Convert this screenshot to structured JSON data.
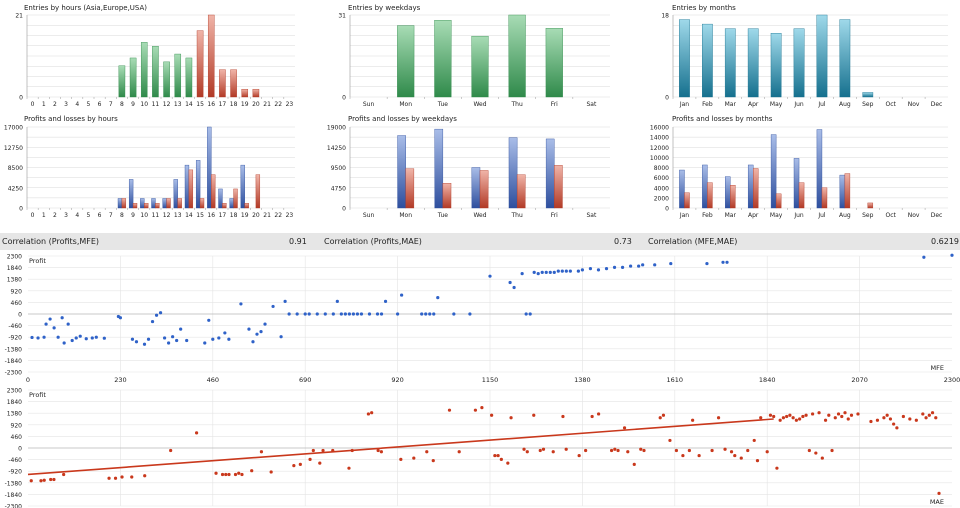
{
  "colors": {
    "green_top": "#a8dcb5",
    "green_bottom": "#2f8a4a",
    "red_top": "#f0b4a8",
    "red_bottom": "#b23a26",
    "teal_top": "#9fd9ea",
    "teal_bottom": "#15708e",
    "blue_top": "#a9bde8",
    "blue_bottom": "#2e4f9e",
    "grid": "#d9d9d9",
    "scatter_blue": "#2f62c8",
    "scatter_red": "#c9381c"
  },
  "correlations": [
    {
      "label": "Correlation (Profits,MFE)",
      "value": "0.91"
    },
    {
      "label": "Correlation (Profits,MAE)",
      "value": "0.73"
    },
    {
      "label": "Correlation (MFE,MAE)",
      "value": "0.6219"
    }
  ],
  "chart_data": [
    {
      "type": "bar",
      "title": "Entries by hours (Asia,Europe,USA)",
      "yticks": [
        "21",
        "0"
      ],
      "ylim": [
        0,
        21
      ],
      "categories": [
        "0",
        "1",
        "2",
        "3",
        "4",
        "5",
        "6",
        "7",
        "8",
        "9",
        "10",
        "11",
        "12",
        "13",
        "14",
        "15",
        "16",
        "17",
        "18",
        "19",
        "20",
        "21",
        "22",
        "23"
      ],
      "values": [
        0,
        0,
        0,
        0,
        0,
        0,
        0,
        0,
        8,
        10,
        14,
        13,
        9,
        11,
        10,
        17,
        21,
        7,
        7,
        2,
        2,
        0,
        0,
        0
      ],
      "bar_colors": [
        "g",
        "g",
        "g",
        "g",
        "g",
        "g",
        "g",
        "g",
        "g",
        "g",
        "g",
        "g",
        "g",
        "g",
        "g",
        "r",
        "r",
        "r",
        "r",
        "r",
        "r",
        "r",
        "r",
        "r"
      ]
    },
    {
      "type": "bar",
      "title": "Entries by weekdays",
      "yticks": [
        "31",
        "0"
      ],
      "ylim": [
        0,
        31
      ],
      "categories": [
        "Sun",
        "Mon",
        "Tue",
        "Wed",
        "Thu",
        "Fri",
        "Sat"
      ],
      "values": [
        0,
        27,
        29,
        23,
        31,
        26,
        0
      ],
      "bar_colors": [
        "g",
        "g",
        "g",
        "g",
        "g",
        "g",
        "g"
      ]
    },
    {
      "type": "bar",
      "title": "Entries by months",
      "yticks": [
        "18",
        "0"
      ],
      "ylim": [
        0,
        18
      ],
      "categories": [
        "Jan",
        "Feb",
        "Mar",
        "Apr",
        "May",
        "Jun",
        "Jul",
        "Aug",
        "Sep",
        "Oct",
        "Nov",
        "Dec"
      ],
      "values": [
        17,
        16,
        15,
        15,
        14,
        15,
        18,
        17,
        1,
        0,
        0,
        0
      ],
      "bar_colors": [
        "t",
        "t",
        "t",
        "t",
        "t",
        "t",
        "t",
        "t",
        "t",
        "t",
        "t",
        "t"
      ]
    },
    {
      "type": "bar",
      "title": "Profits and losses by hours",
      "yticks": [
        "17000",
        "12750",
        "8500",
        "4250",
        "0"
      ],
      "ylim": [
        0,
        17000
      ],
      "categories": [
        "0",
        "1",
        "2",
        "3",
        "4",
        "5",
        "6",
        "7",
        "8",
        "9",
        "10",
        "11",
        "12",
        "13",
        "14",
        "15",
        "16",
        "17",
        "18",
        "19",
        "20",
        "21",
        "22",
        "23"
      ],
      "series": [
        {
          "color": "b",
          "values": [
            0,
            0,
            0,
            0,
            0,
            0,
            0,
            0,
            2000,
            6000,
            2000,
            2000,
            2000,
            6000,
            9000,
            10000,
            17000,
            4000,
            2000,
            9000,
            0,
            0,
            0,
            0
          ]
        },
        {
          "color": "r",
          "values": [
            0,
            0,
            0,
            0,
            0,
            0,
            0,
            0,
            2000,
            1000,
            1000,
            1000,
            2000,
            2000,
            8000,
            2000,
            7000,
            1000,
            4000,
            1000,
            7000,
            0,
            0,
            0
          ]
        }
      ]
    },
    {
      "type": "bar",
      "title": "Profits and losses by weekdays",
      "yticks": [
        "19000",
        "14250",
        "9500",
        "4750",
        "0"
      ],
      "ylim": [
        0,
        19000
      ],
      "categories": [
        "Sun",
        "Mon",
        "Tue",
        "Wed",
        "Thu",
        "Fri",
        "Sat"
      ],
      "series": [
        {
          "color": "b",
          "values": [
            0,
            17000,
            18500,
            9500,
            16500,
            16200,
            0
          ]
        },
        {
          "color": "r",
          "values": [
            0,
            9200,
            5800,
            8800,
            7800,
            10000,
            0
          ]
        }
      ]
    },
    {
      "type": "bar",
      "title": "Profits and losses by months",
      "yticks": [
        "16000",
        "14000",
        "12000",
        "10000",
        "8000",
        "6000",
        "4000",
        "2000",
        "0"
      ],
      "ylim": [
        0,
        16000
      ],
      "categories": [
        "Jan",
        "Feb",
        "Mar",
        "Apr",
        "May",
        "Jun",
        "Jul",
        "Aug",
        "Sep",
        "Oct",
        "Nov",
        "Dec"
      ],
      "series": [
        {
          "color": "b",
          "values": [
            7500,
            8500,
            6200,
            8500,
            14500,
            9800,
            15500,
            6500,
            0,
            0,
            0,
            0
          ]
        },
        {
          "color": "r",
          "values": [
            3000,
            5000,
            4500,
            7800,
            2800,
            5000,
            4000,
            6800,
            1000,
            0,
            0,
            0
          ]
        }
      ]
    },
    {
      "type": "scatter",
      "ylabel": "Profit",
      "xlabel": "MFE",
      "ylim": [
        -2300,
        2300
      ],
      "xlim": [
        0,
        2300
      ],
      "yticks": [
        "2300",
        "1840",
        "1380",
        "920",
        "460",
        "0",
        "-460",
        "-920",
        "-1380",
        "-1840",
        "-2300"
      ],
      "xticks": [
        "0",
        "230",
        "460",
        "690",
        "920",
        "1150",
        "1380",
        "1610",
        "1840",
        "2070",
        "2300"
      ],
      "points": [
        [
          10,
          -930
        ],
        [
          25,
          -950
        ],
        [
          40,
          -920
        ],
        [
          45,
          -400
        ],
        [
          55,
          -200
        ],
        [
          65,
          -550
        ],
        [
          75,
          -920
        ],
        [
          85,
          -150
        ],
        [
          90,
          -1150
        ],
        [
          100,
          -400
        ],
        [
          110,
          -1050
        ],
        [
          120,
          -950
        ],
        [
          130,
          -880
        ],
        [
          145,
          -980
        ],
        [
          160,
          -950
        ],
        [
          170,
          -920
        ],
        [
          190,
          -960
        ],
        [
          225,
          -100
        ],
        [
          230,
          -150
        ],
        [
          260,
          -1000
        ],
        [
          270,
          -1100
        ],
        [
          290,
          -1200
        ],
        [
          300,
          -1000
        ],
        [
          310,
          -300
        ],
        [
          320,
          -50
        ],
        [
          330,
          50
        ],
        [
          340,
          -950
        ],
        [
          350,
          -1150
        ],
        [
          360,
          -900
        ],
        [
          370,
          -1050
        ],
        [
          380,
          -600
        ],
        [
          395,
          -1050
        ],
        [
          440,
          -1150
        ],
        [
          450,
          -250
        ],
        [
          460,
          -1000
        ],
        [
          475,
          -950
        ],
        [
          490,
          -750
        ],
        [
          500,
          -1000
        ],
        [
          530,
          400
        ],
        [
          550,
          -600
        ],
        [
          560,
          -1100
        ],
        [
          570,
          -800
        ],
        [
          580,
          -700
        ],
        [
          590,
          -400
        ],
        [
          610,
          300
        ],
        [
          630,
          -900
        ],
        [
          640,
          500
        ],
        [
          650,
          0
        ],
        [
          670,
          0
        ],
        [
          690,
          0
        ],
        [
          700,
          0
        ],
        [
          720,
          0
        ],
        [
          740,
          0
        ],
        [
          760,
          0
        ],
        [
          770,
          500
        ],
        [
          780,
          0
        ],
        [
          790,
          0
        ],
        [
          800,
          0
        ],
        [
          810,
          0
        ],
        [
          820,
          0
        ],
        [
          830,
          0
        ],
        [
          850,
          0
        ],
        [
          870,
          0
        ],
        [
          880,
          0
        ],
        [
          890,
          500
        ],
        [
          920,
          0
        ],
        [
          930,
          750
        ],
        [
          980,
          0
        ],
        [
          990,
          0
        ],
        [
          1000,
          0
        ],
        [
          1010,
          0
        ],
        [
          1020,
          650
        ],
        [
          1060,
          0
        ],
        [
          1100,
          0
        ],
        [
          1150,
          1500
        ],
        [
          1200,
          1250
        ],
        [
          1210,
          1050
        ],
        [
          1230,
          1600
        ],
        [
          1240,
          0
        ],
        [
          1250,
          0
        ],
        [
          1260,
          1650
        ],
        [
          1270,
          1600
        ],
        [
          1280,
          1650
        ],
        [
          1290,
          1650
        ],
        [
          1300,
          1650
        ],
        [
          1310,
          1650
        ],
        [
          1320,
          1700
        ],
        [
          1330,
          1700
        ],
        [
          1340,
          1700
        ],
        [
          1350,
          1700
        ],
        [
          1370,
          1700
        ],
        [
          1380,
          1750
        ],
        [
          1400,
          1800
        ],
        [
          1420,
          1750
        ],
        [
          1440,
          1800
        ],
        [
          1460,
          1850
        ],
        [
          1480,
          1850
        ],
        [
          1500,
          1900
        ],
        [
          1520,
          1900
        ],
        [
          1530,
          1950
        ],
        [
          1560,
          1950
        ],
        [
          1600,
          2000
        ],
        [
          1690,
          2000
        ],
        [
          1730,
          2050
        ],
        [
          1740,
          2050
        ],
        [
          2230,
          2250
        ],
        [
          2300,
          2330
        ]
      ]
    },
    {
      "type": "scatter",
      "ylabel": "Profit",
      "xlabel": "MAE",
      "ylim": [
        -2300,
        2300
      ],
      "yticks": [
        "2300",
        "1840",
        "1380",
        "920",
        "460",
        "0",
        "-460",
        "-920",
        "-1380",
        "-1840",
        "-2300"
      ],
      "trendline": [
        [
          0,
          -1050
        ],
        [
          2300,
          1150
        ]
      ],
      "points": [
        [
          10,
          -1300
        ],
        [
          40,
          -1300
        ],
        [
          50,
          -1280
        ],
        [
          70,
          -1250
        ],
        [
          80,
          -1250
        ],
        [
          110,
          -1050
        ],
        [
          250,
          -1200
        ],
        [
          270,
          -1200
        ],
        [
          290,
          -1150
        ],
        [
          320,
          -1150
        ],
        [
          360,
          -1100
        ],
        [
          440,
          -100
        ],
        [
          520,
          600
        ],
        [
          580,
          -1000
        ],
        [
          600,
          -1050
        ],
        [
          610,
          -1050
        ],
        [
          620,
          -1050
        ],
        [
          640,
          -1050
        ],
        [
          650,
          -1000
        ],
        [
          660,
          -1050
        ],
        [
          690,
          -900
        ],
        [
          720,
          -150
        ],
        [
          750,
          -950
        ],
        [
          820,
          -700
        ],
        [
          840,
          -650
        ],
        [
          870,
          -450
        ],
        [
          880,
          -100
        ],
        [
          900,
          -600
        ],
        [
          910,
          -100
        ],
        [
          940,
          -100
        ],
        [
          990,
          -800
        ],
        [
          1000,
          -100
        ],
        [
          1050,
          1350
        ],
        [
          1060,
          1400
        ],
        [
          1080,
          -100
        ],
        [
          1090,
          -150
        ],
        [
          1150,
          -450
        ],
        [
          1190,
          -400
        ],
        [
          1230,
          -150
        ],
        [
          1250,
          -500
        ],
        [
          1300,
          1500
        ],
        [
          1330,
          -150
        ],
        [
          1380,
          1500
        ],
        [
          1400,
          1600
        ],
        [
          1430,
          1300
        ],
        [
          1440,
          -300
        ],
        [
          1450,
          -300
        ],
        [
          1460,
          -450
        ],
        [
          1480,
          -600
        ],
        [
          1490,
          1200
        ],
        [
          1530,
          -50
        ],
        [
          1540,
          -150
        ],
        [
          1560,
          1300
        ],
        [
          1580,
          -100
        ],
        [
          1590,
          -50
        ],
        [
          1620,
          -150
        ],
        [
          1650,
          1250
        ],
        [
          1660,
          -50
        ],
        [
          1700,
          -300
        ],
        [
          1720,
          -100
        ],
        [
          1740,
          1250
        ],
        [
          1760,
          1350
        ],
        [
          1800,
          -100
        ],
        [
          1810,
          -50
        ],
        [
          1820,
          -100
        ],
        [
          1840,
          800
        ],
        [
          1850,
          -150
        ],
        [
          1870,
          -650
        ],
        [
          1890,
          -50
        ],
        [
          1900,
          -100
        ],
        [
          1950,
          1200
        ],
        [
          1960,
          1300
        ],
        [
          1980,
          300
        ],
        [
          2000,
          -100
        ],
        [
          2020,
          -300
        ],
        [
          2040,
          -100
        ],
        [
          2050,
          1100
        ],
        [
          2070,
          -300
        ],
        [
          2110,
          -100
        ],
        [
          2130,
          1200
        ],
        [
          2150,
          -50
        ],
        [
          2170,
          -150
        ],
        [
          2180,
          -300
        ],
        [
          2200,
          -400
        ],
        [
          2220,
          -100
        ],
        [
          2240,
          300
        ],
        [
          2250,
          -500
        ],
        [
          2260,
          1200
        ],
        [
          2280,
          -150
        ],
        [
          2290,
          1300
        ],
        [
          2300,
          1250
        ],
        [
          2310,
          -800
        ],
        [
          2320,
          1100
        ],
        [
          2330,
          1200
        ],
        [
          2340,
          1250
        ],
        [
          2350,
          1300
        ],
        [
          2360,
          1200
        ],
        [
          2370,
          1100
        ],
        [
          2380,
          1150
        ],
        [
          2390,
          1250
        ],
        [
          2400,
          1300
        ],
        [
          2410,
          -100
        ],
        [
          2420,
          1350
        ],
        [
          2430,
          -200
        ],
        [
          2440,
          1400
        ],
        [
          2450,
          -400
        ],
        [
          2460,
          1100
        ],
        [
          2470,
          1300
        ],
        [
          2480,
          -100
        ],
        [
          2490,
          1200
        ],
        [
          2500,
          1350
        ],
        [
          2510,
          1250
        ],
        [
          2520,
          1400
        ],
        [
          2530,
          1150
        ],
        [
          2540,
          1300
        ],
        [
          2560,
          1350
        ],
        [
          2600,
          1050
        ],
        [
          2620,
          1100
        ],
        [
          2640,
          1200
        ],
        [
          2650,
          1300
        ],
        [
          2660,
          1150
        ],
        [
          2670,
          950
        ],
        [
          2680,
          800
        ],
        [
          2700,
          1250
        ],
        [
          2720,
          1150
        ],
        [
          2740,
          1100
        ],
        [
          2760,
          1350
        ],
        [
          2770,
          1200
        ],
        [
          2780,
          1300
        ],
        [
          2790,
          1400
        ],
        [
          2800,
          1200
        ],
        [
          2810,
          -1800
        ]
      ]
    }
  ]
}
